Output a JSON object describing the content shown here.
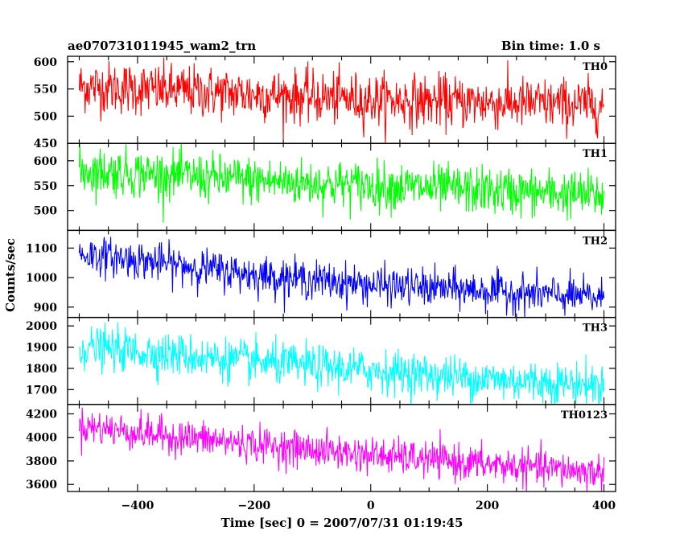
{
  "header": {
    "title": "ae070731011945_wam2_trn",
    "bin_time": "Bin time: 1.0 s"
  },
  "chart_data": {
    "type": "line",
    "xlabel": "Time [sec] 0 = 2007/07/31 01:19:45",
    "ylabel": "Counts/sec",
    "xlim": [
      -520,
      420
    ],
    "x_ticks": [
      -400,
      -200,
      0,
      200,
      400
    ],
    "x_range_data": [
      -500,
      400
    ],
    "bin_time_s": 1.0,
    "grid": false,
    "panels": [
      {
        "name": "TH0",
        "color": "#ff0000",
        "ylim": [
          450,
          610
        ],
        "y_ticks": [
          450,
          500,
          550,
          600
        ],
        "trend": [
          [
            -500,
            555
          ],
          [
            -400,
            550
          ],
          [
            -200,
            540
          ],
          [
            0,
            530
          ],
          [
            200,
            525
          ],
          [
            400,
            520
          ]
        ],
        "noise_sd": 24
      },
      {
        "name": "TH1",
        "color": "#00ff00",
        "ylim": [
          460,
          635
        ],
        "y_ticks": [
          500,
          550,
          600
        ],
        "trend": [
          [
            -500,
            580
          ],
          [
            -400,
            575
          ],
          [
            -200,
            560
          ],
          [
            0,
            550
          ],
          [
            200,
            540
          ],
          [
            400,
            530
          ]
        ],
        "noise_sd": 24
      },
      {
        "name": "TH2",
        "color": "#0000ff",
        "ylim": [
          865,
          1160
        ],
        "y_ticks": [
          900,
          1000,
          1100
        ],
        "trend": [
          [
            -500,
            1080
          ],
          [
            -400,
            1060
          ],
          [
            -200,
            1010
          ],
          [
            0,
            975
          ],
          [
            200,
            955
          ],
          [
            400,
            930
          ]
        ],
        "noise_sd": 32
      },
      {
        "name": "TH3",
        "color": "#00ffff",
        "ylim": [
          1630,
          2040
        ],
        "y_ticks": [
          1700,
          1800,
          1900,
          2000
        ],
        "trend": [
          [
            -500,
            1900
          ],
          [
            -400,
            1880
          ],
          [
            -200,
            1830
          ],
          [
            0,
            1790
          ],
          [
            200,
            1750
          ],
          [
            400,
            1720
          ]
        ],
        "noise_sd": 50
      },
      {
        "name": "TH0123",
        "color": "#ff00ff",
        "ylim": [
          3540,
          4280
        ],
        "y_ticks": [
          3600,
          3800,
          4000,
          4200
        ],
        "trend": [
          [
            -500,
            4100
          ],
          [
            -400,
            4040
          ],
          [
            -200,
            3940
          ],
          [
            0,
            3850
          ],
          [
            200,
            3770
          ],
          [
            400,
            3700
          ]
        ],
        "noise_sd": 75
      }
    ]
  }
}
